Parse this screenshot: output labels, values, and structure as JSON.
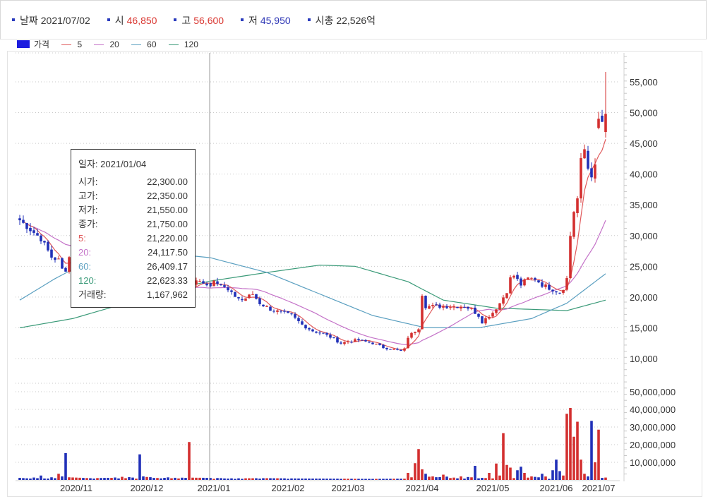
{
  "info_bar": {
    "date_label": "날짜",
    "date_value": "2021/07/02",
    "open_label": "시",
    "open_value": "46,850",
    "high_label": "고",
    "high_value": "56,600",
    "low_label": "저",
    "low_value": "45,950",
    "cap_label": "시총",
    "cap_value": "22,526억"
  },
  "legend": {
    "price_label": "가격",
    "ma": [
      {
        "name": "5",
        "color": "#e0595b"
      },
      {
        "name": "20",
        "color": "#c472c8"
      },
      {
        "name": "60",
        "color": "#5a9fc0"
      },
      {
        "name": "120",
        "color": "#3a9a78"
      }
    ],
    "price_color": "#1d1ddf"
  },
  "tooltip": {
    "date_label": "일자:",
    "date_value": "2021/01/04",
    "rows": [
      {
        "label": "시가:",
        "value": "22,300.00",
        "kind": "dark"
      },
      {
        "label": "고가:",
        "value": "22,350.00",
        "kind": "dark"
      },
      {
        "label": "저가:",
        "value": "21,550.00",
        "kind": "dark"
      },
      {
        "label": "종가:",
        "value": "21,750.00",
        "kind": "dark"
      },
      {
        "label": "5:",
        "value": "21,220.00",
        "kind": "5"
      },
      {
        "label": "20:",
        "value": "24,117.50",
        "kind": "20"
      },
      {
        "label": "60:",
        "value": "26,409.17",
        "kind": "60"
      },
      {
        "label": "120:",
        "value": "22,623.33",
        "kind": "120"
      },
      {
        "label": "거래량:",
        "value": "1,167,962",
        "kind": "vol"
      }
    ]
  },
  "chart_data": {
    "type": "candlestick",
    "up_color": "#d32f2f",
    "down_color": "#2130b8",
    "price_axis": {
      "min": 7000,
      "max": 60000,
      "ticks": [
        10000,
        15000,
        20000,
        25000,
        30000,
        35000,
        40000,
        45000,
        50000,
        55000
      ],
      "tick_labels": [
        "10,000",
        "15,000",
        "20,000",
        "25,000",
        "30,000",
        "35,000",
        "40,000",
        "45,000",
        "50,000",
        "55,000"
      ]
    },
    "volume_axis": {
      "min": 0,
      "max": 53000000,
      "ticks": [
        10000000,
        20000000,
        30000000,
        40000000,
        50000000
      ],
      "tick_labels": [
        "10,000,000",
        "20,000,000",
        "30,000,000",
        "40,000,000",
        "50,000,000"
      ]
    },
    "x_axis_labels": [
      {
        "label": "2020/11",
        "index": 16
      },
      {
        "label": "2020/12",
        "index": 36
      },
      {
        "label": "2021/01",
        "index": 55
      },
      {
        "label": "2021/02",
        "index": 76
      },
      {
        "label": "2021/03",
        "index": 93
      },
      {
        "label": "2021/04",
        "index": 114
      },
      {
        "label": "2021/05",
        "index": 134
      },
      {
        "label": "2021/06",
        "index": 152
      },
      {
        "label": "2021/07",
        "index": 164
      }
    ],
    "crosshair_index": 54,
    "price_keys": [
      [
        0,
        32500
      ],
      [
        3,
        31000
      ],
      [
        6,
        29500
      ],
      [
        9,
        26500
      ],
      [
        11,
        26000
      ],
      [
        12,
        24500
      ],
      [
        13,
        24500
      ],
      [
        14,
        26500
      ],
      [
        16,
        27000
      ],
      [
        17,
        28000
      ],
      [
        18,
        25000
      ],
      [
        20,
        25500
      ],
      [
        24,
        24000
      ],
      [
        28,
        22500
      ],
      [
        32,
        22800
      ],
      [
        36,
        22000
      ],
      [
        40,
        21000
      ],
      [
        44,
        20500
      ],
      [
        48,
        21500
      ],
      [
        50,
        22500
      ],
      [
        52,
        22500
      ],
      [
        54,
        21750
      ],
      [
        55,
        23000
      ],
      [
        57,
        22000
      ],
      [
        60,
        20500
      ],
      [
        63,
        19500
      ],
      [
        66,
        20500
      ],
      [
        68,
        19000
      ],
      [
        71,
        18000
      ],
      [
        74,
        17500
      ],
      [
        77,
        17000
      ],
      [
        80,
        15500
      ],
      [
        83,
        14500
      ],
      [
        86,
        14000
      ],
      [
        88,
        13500
      ],
      [
        91,
        12500
      ],
      [
        93,
        12800
      ],
      [
        96,
        13000
      ],
      [
        100,
        12500
      ],
      [
        103,
        11800
      ],
      [
        106,
        11500
      ],
      [
        108,
        11200
      ],
      [
        109,
        11500
      ],
      [
        110,
        13500
      ],
      [
        113,
        15000
      ],
      [
        114,
        20500
      ],
      [
        115,
        18500
      ],
      [
        116,
        18500
      ],
      [
        118,
        18500
      ],
      [
        122,
        18500
      ],
      [
        126,
        18500
      ],
      [
        128,
        18000
      ],
      [
        130,
        17000
      ],
      [
        131,
        16000
      ],
      [
        132,
        16500
      ],
      [
        134,
        17500
      ],
      [
        136,
        19000
      ],
      [
        138,
        21000
      ],
      [
        139,
        23000
      ],
      [
        140,
        23500
      ],
      [
        142,
        22000
      ],
      [
        144,
        23000
      ],
      [
        146,
        23000
      ],
      [
        148,
        22000
      ],
      [
        150,
        21500
      ],
      [
        152,
        21000
      ],
      [
        153,
        20800
      ],
      [
        154,
        21500
      ],
      [
        155,
        23000
      ],
      [
        156,
        30000
      ],
      [
        157,
        34000
      ],
      [
        158,
        36000
      ],
      [
        159,
        42000
      ],
      [
        160,
        44000
      ],
      [
        161,
        41000
      ],
      [
        162,
        40000
      ],
      [
        163,
        41000
      ],
      [
        164,
        47000
      ],
      [
        165,
        48000
      ],
      [
        166,
        49000
      ]
    ],
    "volume_keys": [
      [
        0,
        1200000
      ],
      [
        3,
        800000
      ],
      [
        6,
        2500000
      ],
      [
        9,
        1500000
      ],
      [
        11,
        3500000
      ],
      [
        12,
        2000000
      ],
      [
        13,
        15200000
      ],
      [
        14,
        1500000
      ],
      [
        20,
        1000000
      ],
      [
        25,
        1200000
      ],
      [
        34,
        14500000
      ],
      [
        35,
        2000000
      ],
      [
        40,
        900000
      ],
      [
        48,
        21500000
      ],
      [
        49,
        1300000
      ],
      [
        54,
        1167962
      ],
      [
        60,
        900000
      ],
      [
        70,
        1000000
      ],
      [
        80,
        800000
      ],
      [
        90,
        700000
      ],
      [
        100,
        600000
      ],
      [
        108,
        700000
      ],
      [
        110,
        4000000
      ],
      [
        111,
        1500000
      ],
      [
        112,
        9500000
      ],
      [
        113,
        17500000
      ],
      [
        114,
        6000000
      ],
      [
        115,
        3500000
      ],
      [
        117,
        2000000
      ],
      [
        120,
        3000000
      ],
      [
        125,
        2000000
      ],
      [
        128,
        1500000
      ],
      [
        129,
        8000000
      ],
      [
        131,
        1200000
      ],
      [
        133,
        4000000
      ],
      [
        135,
        9300000
      ],
      [
        136,
        2500000
      ],
      [
        137,
        26500000
      ],
      [
        138,
        8500000
      ],
      [
        139,
        7000000
      ],
      [
        141,
        5500000
      ],
      [
        142,
        7500000
      ],
      [
        143,
        4000000
      ],
      [
        145,
        2000000
      ],
      [
        147,
        1500000
      ],
      [
        148,
        3500000
      ],
      [
        151,
        5500000
      ],
      [
        152,
        11500000
      ],
      [
        153,
        5000000
      ],
      [
        154,
        2500000
      ],
      [
        155,
        37500000
      ],
      [
        156,
        40800000
      ],
      [
        157,
        24500000
      ],
      [
        158,
        33000000
      ],
      [
        159,
        11500000
      ],
      [
        160,
        3500000
      ],
      [
        161,
        2000000
      ],
      [
        162,
        33500000
      ],
      [
        163,
        10000000
      ],
      [
        164,
        28500000
      ]
    ]
  }
}
